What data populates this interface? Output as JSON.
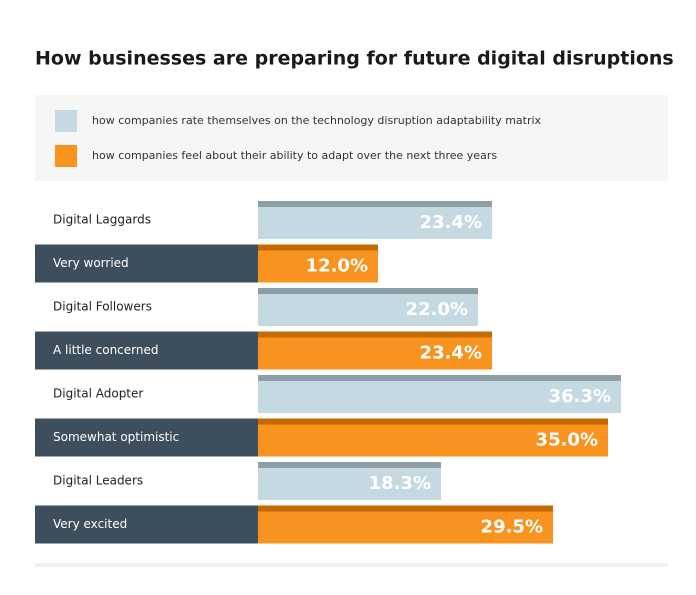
{
  "chart_data": {
    "type": "bar",
    "orientation": "horizontal",
    "title": "How businesses are preparing for future digital disruptions",
    "categories": [
      "Digital Laggards",
      "Very worried",
      "Digital Followers",
      "A little concerned",
      "Digital Adopter",
      "Somewhat optimistic",
      "Digital Leaders",
      "Very excited"
    ],
    "series": [
      {
        "name": "how companies rate themselves on the technology disruption adaptability matrix",
        "color": "#c5d9e3",
        "values": [
          23.4,
          null,
          22.0,
          null,
          36.3,
          null,
          18.3,
          null
        ],
        "value_labels": [
          "23.4%",
          null,
          "22.0%",
          null,
          "36.3%",
          null,
          "18.3%",
          null
        ]
      },
      {
        "name": "how companies feel about their ability to adapt over the next three years",
        "color": "#f7931e",
        "values": [
          null,
          12.0,
          null,
          23.4,
          null,
          35.0,
          null,
          29.5
        ],
        "value_labels": [
          null,
          "12.0%",
          null,
          "23.4%",
          null,
          "35.0%",
          null,
          "29.5%"
        ]
      }
    ]
  }
}
